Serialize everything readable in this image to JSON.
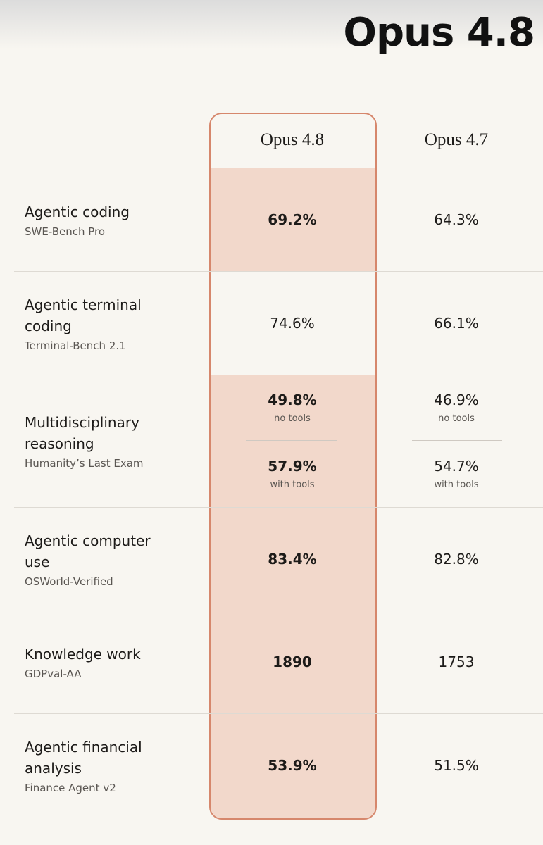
{
  "header": {
    "title": "Opus 4.8"
  },
  "table": {
    "columns": [
      "Opus 4.8",
      "Opus 4.7"
    ],
    "rows": [
      {
        "task": "Agentic coding",
        "benchmark": "SWE-Bench Pro",
        "values": [
          "69.2%",
          "64.3%"
        ]
      },
      {
        "task": "Agentic terminal coding",
        "benchmark": "Terminal-Bench 2.1",
        "values": [
          "74.6%",
          "66.1%"
        ]
      },
      {
        "task": "Multidisciplinary reasoning",
        "benchmark": "Humanity’s Last Exam",
        "values": [
          [
            {
              "value": "49.8%",
              "note": "no tools"
            },
            {
              "value": "57.9%",
              "note": "with tools"
            }
          ],
          [
            {
              "value": "46.9%",
              "note": "no tools"
            },
            {
              "value": "54.7%",
              "note": "with tools"
            }
          ]
        ]
      },
      {
        "task": "Agentic computer use",
        "benchmark": "OSWorld-Verified",
        "values": [
          "83.4%",
          "82.8%"
        ]
      },
      {
        "task": "Knowledge work",
        "benchmark": "GDPval-AA",
        "values": [
          "1890",
          "1753"
        ]
      },
      {
        "task": "Agentic financial analysis",
        "benchmark": "Finance Agent v2",
        "values": [
          "53.9%",
          "51.5%"
        ]
      }
    ]
  }
}
